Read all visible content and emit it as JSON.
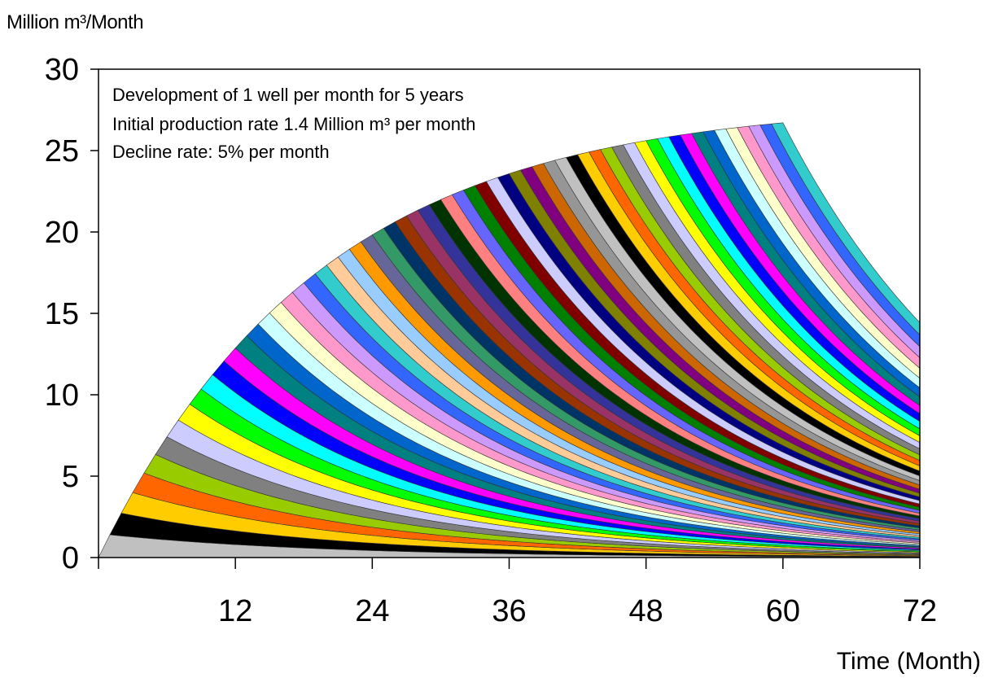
{
  "chart_data": {
    "type": "area",
    "stacked": true,
    "ylabel": "Million m³/Month",
    "xlabel": "Time (Month)",
    "xlim": [
      0,
      72
    ],
    "ylim": [
      0,
      30
    ],
    "x_ticks": [
      12,
      24,
      36,
      48,
      60,
      72
    ],
    "y_ticks": [
      0,
      5,
      10,
      15,
      20,
      25,
      30
    ],
    "annotations": [
      "Development of 1 well per month for 5 years",
      "Initial production rate 1.4 Million m³ per month",
      "Decline rate: 5% per month"
    ],
    "model": {
      "wells": 60,
      "well_start_months": "one new well each month, months 1 to 60",
      "initial_rate": 1.4,
      "monthly_decline": 0.05
    },
    "total_peak": {
      "x": 60,
      "y": 26.7
    },
    "total_end": {
      "x": 72,
      "y": 14.4
    },
    "colors": [
      "#c0c0c0",
      "#000000",
      "#ffcc00",
      "#ff6600",
      "#99cc00",
      "#808080",
      "#ccccff",
      "#ffff00",
      "#00ff00",
      "#00ffff",
      "#0000ff",
      "#ff00ff",
      "#008080",
      "#0066cc",
      "#ccffff",
      "#ffffcc",
      "#ff99cc",
      "#cc99ff",
      "#3366ff",
      "#33cccc",
      "#ffcc99",
      "#99ccff",
      "#ff9900",
      "#666699",
      "#339966",
      "#003366",
      "#993300",
      "#993366",
      "#333399",
      "#003300",
      "#ff8080",
      "#6666ff",
      "#008000",
      "#800000",
      "#ccccff",
      "#000080",
      "#808000",
      "#800080",
      "#cc6600",
      "#969696"
    ],
    "legend": "none",
    "grid": false
  }
}
